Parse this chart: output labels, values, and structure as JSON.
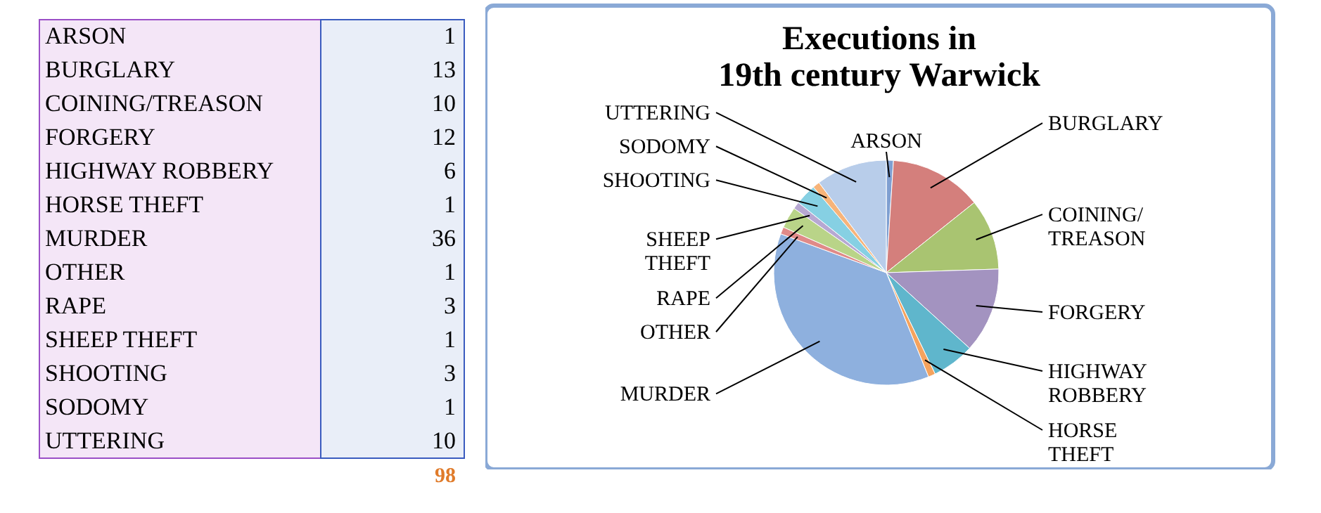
{
  "chart_data": [
    {
      "type": "other",
      "categories": [
        "ARSON",
        "BURGLARY",
        "COINING/TREASON",
        "FORGERY",
        "HIGHWAY ROBBERY",
        "HORSE THEFT",
        "MURDER",
        "OTHER",
        "RAPE",
        "SHEEP THEFT",
        "SHOOTING",
        "SODOMY",
        "UTTERING"
      ],
      "values": [
        1,
        13,
        10,
        12,
        6,
        1,
        36,
        1,
        3,
        1,
        3,
        1,
        10
      ],
      "data_labels": true,
      "annotations": [
        "98"
      ]
    },
    {
      "type": "pie",
      "title": "Executions in\n19th century Warwick",
      "categories": [
        "ARSON",
        "BURGLARY",
        "COINING/TREASON",
        "FORGERY",
        "HIGHWAY ROBBERY",
        "HORSE THEFT",
        "MURDER",
        "OTHER",
        "RAPE",
        "SHEEP THEFT",
        "SHOOTING",
        "SODOMY",
        "UTTERING"
      ],
      "values": [
        1,
        13,
        10,
        12,
        6,
        1,
        36,
        1,
        3,
        1,
        3,
        1,
        10
      ],
      "colors": [
        "#7f9fd1",
        "#d47f7c",
        "#a9c471",
        "#a393c0",
        "#5fb6cc",
        "#f5a35e",
        "#8eb0de",
        "#e08a88",
        "#b9d488",
        "#b7a8d2",
        "#86d0e3",
        "#f7b47a",
        "#b8cdea"
      ],
      "legend": false
    }
  ]
}
